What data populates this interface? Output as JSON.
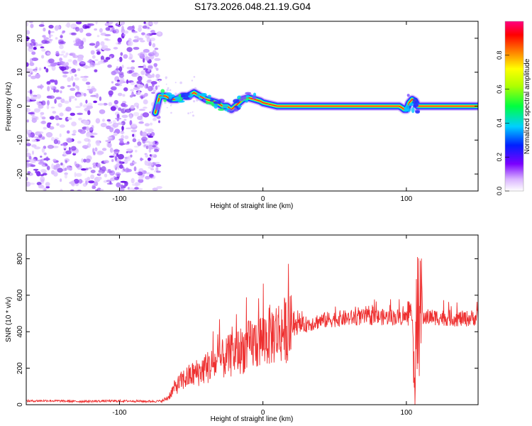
{
  "title": "S173.2026.048.21.19.G04",
  "chart_data": [
    {
      "type": "heatmap",
      "name": "spectrogram",
      "xlabel": "Height of straight line (km)",
      "ylabel": "Frequency (Hz)",
      "xlim": [
        -165,
        150
      ],
      "ylim": [
        -25,
        25
      ],
      "x_ticks": [
        -100,
        0,
        100
      ],
      "y_ticks": [
        -20,
        -10,
        0,
        10,
        20
      ],
      "noise_region_x": [
        -165,
        -75
      ],
      "ridge": {
        "x": [
          -75,
          -72,
          -68,
          -64,
          -60,
          -56,
          -52,
          -48,
          -44,
          -40,
          -36,
          -32,
          -28,
          -25,
          -22,
          -18,
          -14,
          -10,
          -6,
          -2,
          0,
          5,
          10,
          15,
          20,
          40,
          60,
          80,
          95,
          97,
          98.5,
          100,
          102,
          104,
          106,
          108,
          110,
          130,
          150
        ],
        "y": [
          -2,
          3,
          3,
          2,
          2,
          3,
          3,
          4,
          3,
          2,
          1.5,
          1,
          0,
          0,
          -1,
          0.5,
          2,
          2.5,
          2,
          1.5,
          1,
          0.5,
          0,
          0,
          0,
          0,
          0,
          0,
          0,
          -0.5,
          -1,
          -1,
          1,
          2,
          1.5,
          0,
          0,
          0,
          0
        ]
      },
      "colorbar": {
        "label": "Normalized spectral amplitude",
        "range": [
          0,
          1
        ],
        "ticks": [
          "0.0",
          "0.2",
          "0.4",
          "0.6",
          "0.8"
        ]
      }
    },
    {
      "type": "line",
      "name": "snr",
      "xlabel": "Height of straight line (km)",
      "ylabel": "SNR (10 * v/v)",
      "xlim": [
        -165,
        150
      ],
      "ylim": [
        0,
        930
      ],
      "x_ticks": [
        -100,
        0,
        100
      ],
      "y_ticks": [
        0,
        200,
        400,
        600,
        800
      ],
      "series": [
        {
          "name": "SNR",
          "color": "#ee3030",
          "x": [
            -165,
            -150,
            -130,
            -110,
            -90,
            -80,
            -70,
            -66,
            -62,
            -58,
            -55,
            -50,
            -45,
            -40,
            -35,
            -30,
            -25,
            -20,
            -15,
            -10,
            -5,
            0,
            5,
            10,
            15,
            20,
            25,
            30,
            35,
            40,
            50,
            60,
            70,
            80,
            90,
            100,
            104,
            106,
            108,
            110,
            112,
            120,
            130,
            140,
            150
          ],
          "y": [
            20,
            22,
            18,
            20,
            20,
            18,
            20,
            40,
            90,
            120,
            140,
            160,
            180,
            200,
            220,
            240,
            260,
            280,
            300,
            320,
            340,
            360,
            380,
            400,
            410,
            420,
            430,
            440,
            450,
            460,
            470,
            475,
            480,
            480,
            480,
            480,
            470,
            300,
            500,
            450,
            480,
            480,
            475,
            470,
            480
          ]
        }
      ]
    }
  ],
  "colors": {
    "noise": "#8a2be2",
    "ridge_core": "#ff2020",
    "line": "#ee3030"
  }
}
